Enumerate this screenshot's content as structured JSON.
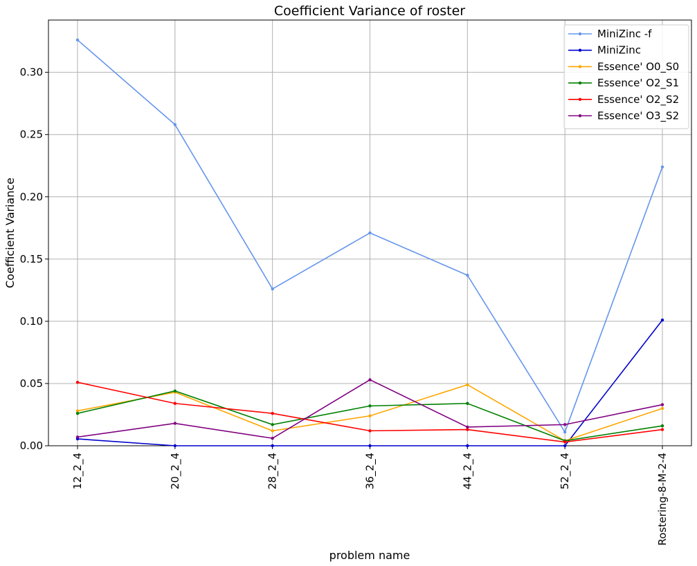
{
  "chart_data": {
    "type": "line",
    "title": "Coefficient Variance of roster",
    "xlabel": "problem name",
    "ylabel": "Coefficient Variance",
    "categories": [
      "12_2_4",
      "20_2_4",
      "28_2_4",
      "36_2_4",
      "44_2_4",
      "52_2_4",
      "Rostering-8-M-2-4"
    ],
    "ylim": [
      0.0,
      0.342
    ],
    "yticks": [
      0.0,
      0.05,
      0.1,
      0.15,
      0.2,
      0.25,
      0.3
    ],
    "ytick_labels": [
      "0.00",
      "0.05",
      "0.10",
      "0.15",
      "0.20",
      "0.25",
      "0.30"
    ],
    "grid": true,
    "legend_position": "top-right",
    "series": [
      {
        "name": "MiniZinc -f",
        "color": "#6495ED",
        "values": [
          0.326,
          0.258,
          0.126,
          0.171,
          0.137,
          0.011,
          0.224
        ]
      },
      {
        "name": "MiniZinc",
        "color": "#0000CD",
        "values": [
          0.0055,
          0.0,
          0.0,
          0.0,
          0.0,
          0.0,
          0.101
        ]
      },
      {
        "name": "Essence' O0_S0",
        "color": "#FFA500",
        "values": [
          0.028,
          0.043,
          0.012,
          0.024,
          0.049,
          0.004,
          0.03
        ]
      },
      {
        "name": "Essence' O2_S1",
        "color": "#008000",
        "values": [
          0.026,
          0.044,
          0.017,
          0.032,
          0.034,
          0.004,
          0.016
        ]
      },
      {
        "name": "Essence' O2_S2",
        "color": "#FF0000",
        "values": [
          0.051,
          0.034,
          0.026,
          0.012,
          0.013,
          0.003,
          0.013
        ]
      },
      {
        "name": "Essence' O3_S2",
        "color": "#800080",
        "values": [
          0.007,
          0.018,
          0.006,
          0.053,
          0.015,
          0.017,
          0.033
        ]
      }
    ]
  }
}
